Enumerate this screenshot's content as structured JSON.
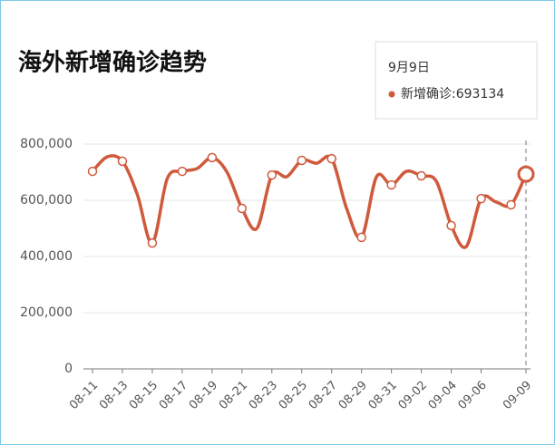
{
  "chart_data": {
    "type": "line",
    "title": "海外新增确诊趋势",
    "categories": [
      "08-11",
      null,
      "08-13",
      null,
      "08-15",
      null,
      "08-17",
      null,
      "08-19",
      null,
      "08-21",
      null,
      "08-23",
      null,
      "08-25",
      null,
      "08-27",
      null,
      "08-29",
      null,
      "08-31",
      null,
      "09-02",
      null,
      "09-04",
      null,
      "09-06",
      null,
      null,
      "09-09"
    ],
    "series": [
      {
        "name": "新增确诊",
        "color": "#cf5a3c",
        "values": [
          703000,
          755000,
          739000,
          620000,
          448000,
          677000,
          703000,
          713000,
          752000,
          700000,
          571000,
          500000,
          690000,
          684000,
          742000,
          732000,
          748000,
          571000,
          468000,
          684000,
          655000,
          703000,
          687000,
          668000,
          510000,
          435000,
          606000,
          594000,
          584000,
          693134
        ]
      }
    ],
    "ylim": [
      0,
      800000
    ],
    "yticks": [
      0,
      {
        "value": 200000,
        "label": "200,000"
      },
      {
        "value": 400000,
        "label": "400,000"
      },
      {
        "value": 600000,
        "label": "600,000"
      },
      {
        "value": 800000,
        "label": "800,000"
      }
    ],
    "grid": true,
    "tooltip": {
      "title": "9月9日",
      "separator": ":"
    }
  }
}
